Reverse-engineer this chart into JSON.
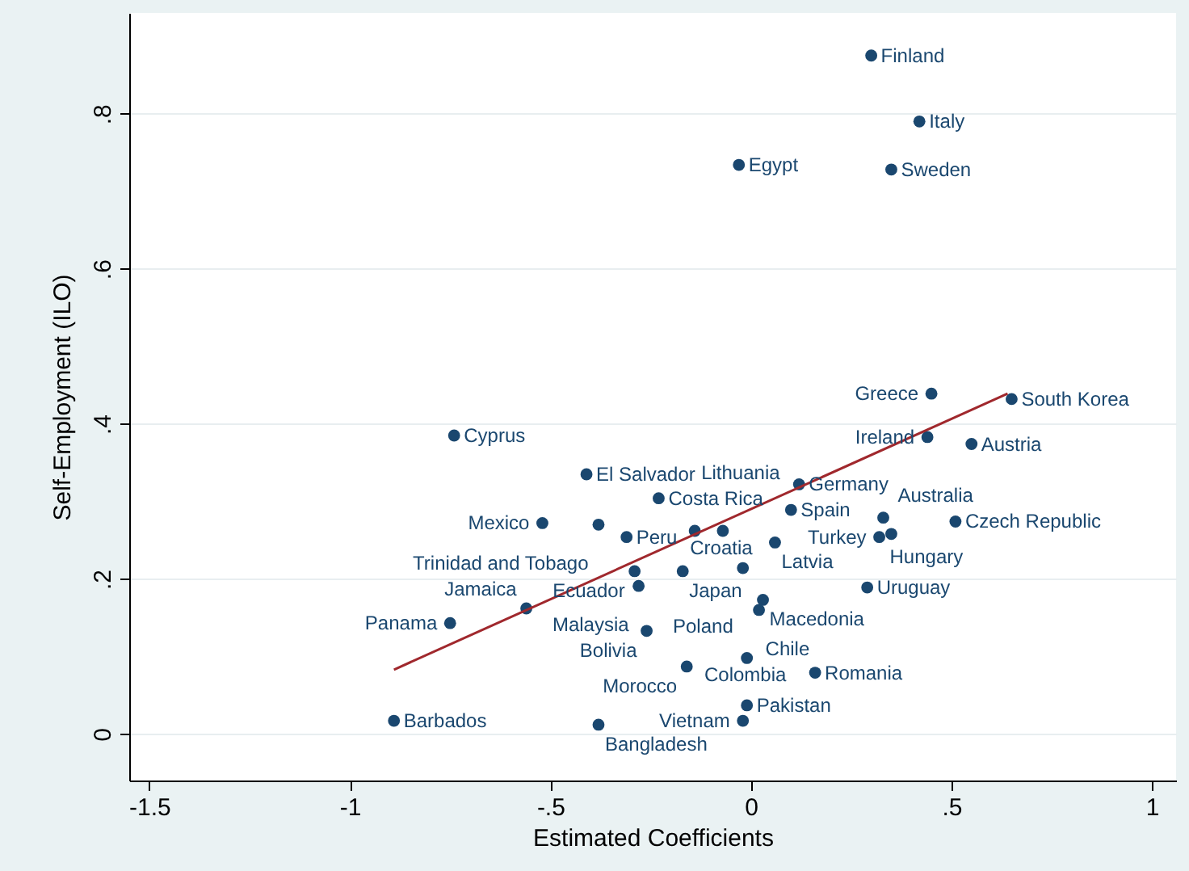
{
  "chart_data": {
    "type": "scatter",
    "xlabel": "Estimated Coefficients",
    "ylabel": "Self-Employment (ILO)",
    "xlim": [
      -1.55,
      1.06
    ],
    "ylim": [
      -0.06,
      0.93
    ],
    "xticks": [
      {
        "value": -1.5,
        "label": "-1.5"
      },
      {
        "value": -1,
        "label": "-1"
      },
      {
        "value": -0.5,
        "label": "-.5"
      },
      0,
      {
        "value": 0.5,
        "label": ".5"
      },
      1
    ],
    "yticks": [
      0,
      {
        "value": 0.2,
        "label": ".2"
      },
      {
        "value": 0.4,
        "label": ".4"
      },
      {
        "value": 0.6,
        "label": ".6"
      },
      {
        "value": 0.8,
        "label": ".8"
      }
    ],
    "grid": "y",
    "series": [
      {
        "type": "scatter",
        "marker": "circle",
        "color": "#1a476f",
        "x": [
          0.3,
          0.42,
          -0.03,
          0.35,
          0.45,
          0.65,
          0.44,
          0.55,
          -0.74,
          -0.41,
          -0.23,
          0.12,
          0.1,
          0.33,
          0.51,
          0.35,
          0.32,
          -0.52,
          -0.38,
          -0.31,
          -0.14,
          -0.07,
          0.06,
          -0.29,
          -0.17,
          -0.02,
          -0.28,
          0.29,
          0.03,
          0.02,
          -0.56,
          -0.75,
          -0.26,
          -0.01,
          -0.16,
          0.16,
          -0.01,
          -0.02,
          -0.89,
          -0.38
        ],
        "values": [
          0.875,
          0.79,
          0.734,
          0.728,
          0.439,
          0.432,
          0.383,
          0.374,
          0.385,
          0.335,
          0.304,
          0.322,
          0.289,
          0.279,
          0.274,
          0.258,
          0.254,
          0.272,
          0.27,
          0.254,
          0.262,
          0.262,
          0.247,
          0.21,
          0.21,
          0.214,
          0.191,
          0.189,
          0.173,
          0.16,
          0.162,
          0.143,
          0.133,
          0.098,
          0.087,
          0.079,
          0.037,
          0.017,
          0.017,
          0.012
        ]
      },
      {
        "type": "line",
        "color": "#a0282d",
        "x": [
          -0.89,
          0.64
        ],
        "values": [
          0.083,
          0.439
        ]
      }
    ],
    "annotations": [
      {
        "text": "Finland",
        "x": 0.3,
        "y": 0.875
      },
      {
        "text": "Italy",
        "x": 0.42,
        "y": 0.79
      },
      {
        "text": "Egypt",
        "x": -0.03,
        "y": 0.734
      },
      {
        "text": "Sweden",
        "x": 0.35,
        "y": 0.728
      },
      {
        "text": "Greece",
        "x": 0.45,
        "y": 0.439
      },
      {
        "text": "South Korea",
        "x": 0.65,
        "y": 0.432
      },
      {
        "text": "Ireland",
        "x": 0.44,
        "y": 0.383
      },
      {
        "text": "Austria",
        "x": 0.55,
        "y": 0.374
      },
      {
        "text": "Cyprus",
        "x": -0.74,
        "y": 0.385
      },
      {
        "text": "El Salvador",
        "x": -0.41,
        "y": 0.335
      },
      {
        "text": "Costa Rica",
        "x": -0.23,
        "y": 0.304
      },
      {
        "text": "Germany",
        "x": 0.12,
        "y": 0.322
      },
      {
        "text": "Spain",
        "x": 0.1,
        "y": 0.289
      },
      {
        "text": "Hungary",
        "x": 0.33,
        "y": 0.279
      },
      {
        "text": "Czech Republic",
        "x": 0.51,
        "y": 0.274
      },
      {
        "text": "Australia",
        "x": 0.35,
        "y": 0.258
      },
      {
        "text": "Turkey",
        "x": 0.32,
        "y": 0.254
      },
      {
        "text": "Mexico",
        "x": -0.52,
        "y": 0.272
      },
      {
        "text": "Trinidad and Tobago",
        "x": -0.38,
        "y": 0.27
      },
      {
        "text": "Peru",
        "x": -0.31,
        "y": 0.254
      },
      {
        "text": "Lithuania",
        "x": -0.14,
        "y": 0.262
      },
      {
        "text": "Croatia",
        "x": -0.07,
        "y": 0.262
      },
      {
        "text": "Latvia",
        "x": 0.06,
        "y": 0.247
      },
      {
        "text": "Ecuador",
        "x": -0.29,
        "y": 0.21
      },
      {
        "text": "Japan",
        "x": -0.17,
        "y": 0.21
      },
      {
        "text": "Poland",
        "x": -0.02,
        "y": 0.214
      },
      {
        "text": "Malaysia",
        "x": -0.28,
        "y": 0.191
      },
      {
        "text": "Uruguay",
        "x": 0.29,
        "y": 0.189
      },
      {
        "text": "Macedonia",
        "x": 0.03,
        "y": 0.173
      },
      {
        "text": "Chile",
        "x": 0.02,
        "y": 0.16
      },
      {
        "text": "Jamaica",
        "x": -0.56,
        "y": 0.162
      },
      {
        "text": "Panama",
        "x": -0.75,
        "y": 0.143
      },
      {
        "text": "Bolivia",
        "x": -0.26,
        "y": 0.133
      },
      {
        "text": "Colombia",
        "x": -0.01,
        "y": 0.098
      },
      {
        "text": "Morocco",
        "x": -0.16,
        "y": 0.087
      },
      {
        "text": "Romania",
        "x": 0.16,
        "y": 0.079
      },
      {
        "text": "Pakistan",
        "x": -0.01,
        "y": 0.037
      },
      {
        "text": "Vietnam",
        "x": -0.02,
        "y": 0.017
      },
      {
        "text": "Barbados",
        "x": -0.89,
        "y": 0.017
      },
      {
        "text": "Bangladesh",
        "x": -0.38,
        "y": 0.012
      }
    ]
  }
}
